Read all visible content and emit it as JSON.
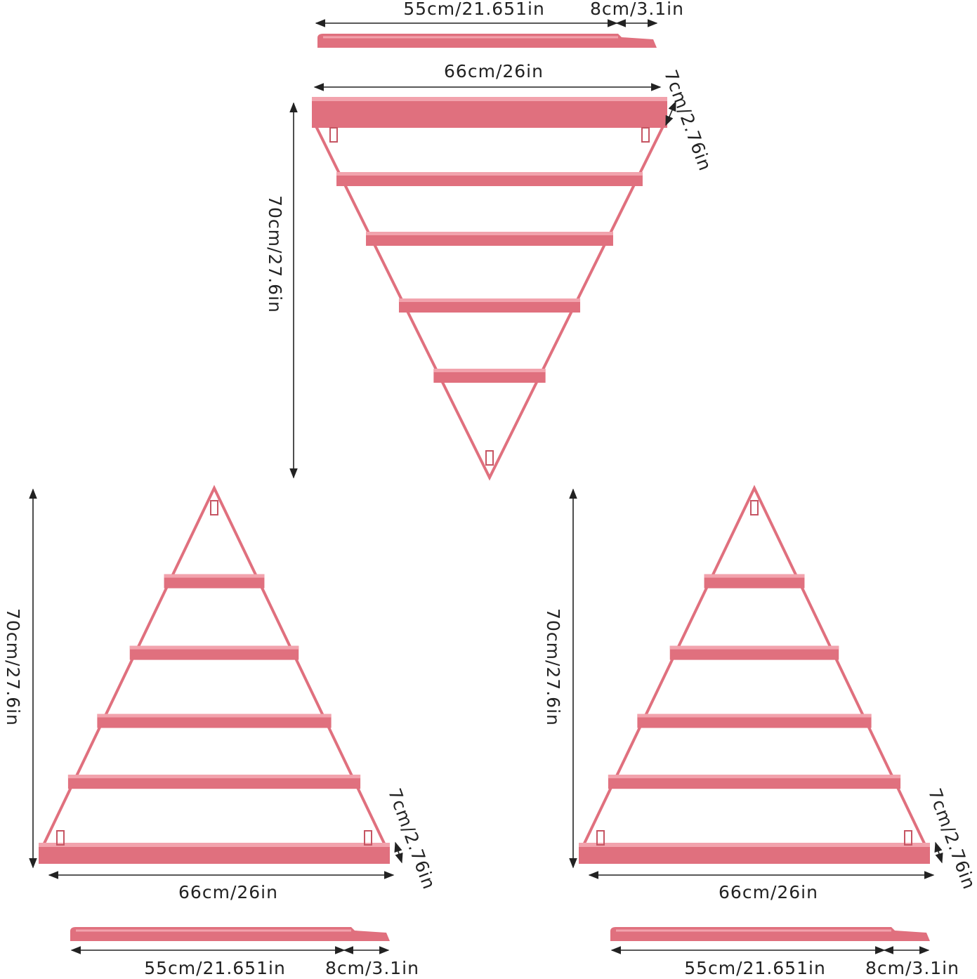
{
  "figures": [
    {
      "shelf_length": "55cm/21.651in",
      "shelf_lip": "8cm/3.1in",
      "width": "66cm/26in",
      "depth": "7cm/2.76in",
      "height": "70cm/27.6in"
    },
    {
      "shelf_length": "55cm/21.651in",
      "shelf_lip": "8cm/3.1in",
      "width": "66cm/26in",
      "depth": "7cm/2.76in",
      "height": "70cm/27.6in"
    },
    {
      "shelf_length": "55cm/21.651in",
      "shelf_lip": "8cm/3.1in",
      "width": "66cm/26in",
      "depth": "7cm/2.76in",
      "height": "70cm/27.6in"
    }
  ]
}
